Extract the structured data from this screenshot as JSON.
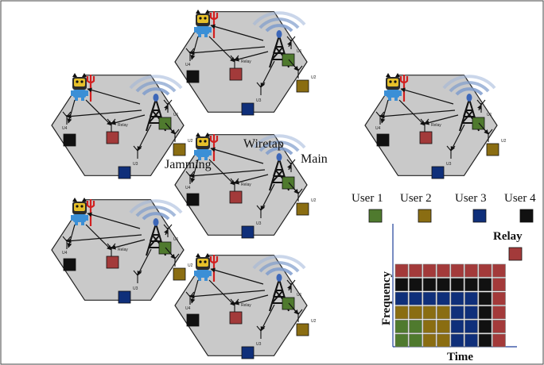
{
  "colors": {
    "cell_fill": "#c9c9c9",
    "cell_stroke": "#222222",
    "user1": "#4f7a2e",
    "user2": "#8a6d12",
    "user3": "#0f2f7a",
    "user4": "#111111",
    "relay": "#a33a3a",
    "signal": "#6f8fc7"
  },
  "cells": [
    {
      "id": "top",
      "labels": {
        "u1": "U1",
        "u2": "U2",
        "u3": "U3",
        "u4": "U4",
        "relay": "Relay"
      }
    },
    {
      "id": "upper-left",
      "labels": {
        "u1": "U1",
        "u2": "U2",
        "u3": "U3",
        "u4": "U4",
        "relay": "Relay"
      }
    },
    {
      "id": "upper-right",
      "labels": {
        "u1": "U1",
        "u2": "U2",
        "u3": "U3",
        "u4": "U4",
        "relay": "Relay"
      }
    },
    {
      "id": "center",
      "labels": {
        "u1": "",
        "u2": "U2",
        "u3": "U3",
        "u4": "U4",
        "relay": "Relay"
      }
    },
    {
      "id": "lower-left",
      "labels": {
        "u1": "U1",
        "u2": "U2",
        "u3": "U3",
        "u4": "U4",
        "relay": "Relay"
      }
    },
    {
      "id": "bottom",
      "labels": {
        "u1": "U1",
        "u2": "U2",
        "u3": "U3",
        "u4": "U4",
        "relay": "Relay"
      }
    }
  ],
  "annotations": {
    "jamming": "Jamming",
    "wiretap": "Wiretap",
    "main": "Main"
  },
  "legend": {
    "user1": "User 1",
    "user2": "User 2",
    "user3": "User 3",
    "user4": "User 4",
    "relay": "Relay"
  },
  "resource_grid": {
    "y_label": "Frequency",
    "x_label": "Time",
    "rows": [
      [
        "relay",
        "relay",
        "relay",
        "relay",
        "relay",
        "relay",
        "relay",
        "relay"
      ],
      [
        "user4",
        "user4",
        "user4",
        "user4",
        "user4",
        "user4",
        "user4",
        "relay"
      ],
      [
        "user3",
        "user3",
        "user3",
        "user3",
        "user3",
        "user3",
        "user4",
        "relay"
      ],
      [
        "user2",
        "user2",
        "user2",
        "user2",
        "user3",
        "user3",
        "user4",
        "relay"
      ],
      [
        "user1",
        "user1",
        "user2",
        "user2",
        "user3",
        "user3",
        "user4",
        "relay"
      ],
      [
        "user1",
        "user1",
        "user2",
        "user2",
        "user3",
        "user3",
        "user4",
        "relay"
      ]
    ]
  }
}
